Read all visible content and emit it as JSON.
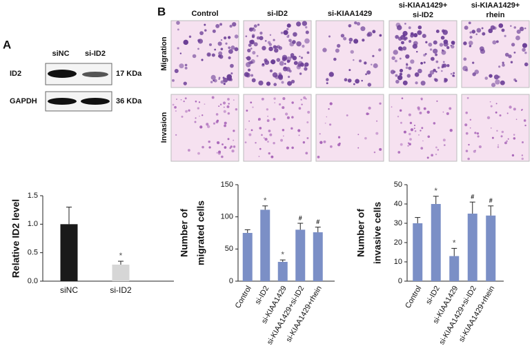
{
  "panel_labels": [
    "A",
    "B"
  ],
  "blot": {
    "lanes": [
      "siNC",
      "si-ID2"
    ],
    "proteins": [
      "ID2",
      "GAPDH"
    ],
    "sizes": [
      "17 KDa",
      "36 KDa"
    ]
  },
  "images": {
    "columns": [
      [
        "Control"
      ],
      [
        "si-ID2"
      ],
      [
        "si-KIAA1429"
      ],
      [
        "si-KIAA1429+",
        "si-ID2"
      ],
      [
        "si-KIAA1429+",
        "rhein"
      ]
    ],
    "rows": [
      "Migration",
      "Invasion"
    ]
  },
  "chart_data": [
    {
      "type": "bar",
      "ylabel": [
        "Relative ID2 level"
      ],
      "categories": [
        "siNC",
        "si-ID2"
      ],
      "values": [
        1.0,
        0.29
      ],
      "errors": [
        0.3,
        0.06
      ],
      "markers": [
        null,
        "*"
      ],
      "colors": [
        "#1a1a1a",
        "#d6d6d6"
      ],
      "ylim": [
        0,
        1.5
      ],
      "yticks": [
        {
          "value": 0,
          "label": "0.0"
        },
        {
          "value": 0.5,
          "label": "0.5"
        },
        {
          "value": 1,
          "label": "1.0"
        },
        {
          "value": 1.5,
          "label": "1.5"
        }
      ]
    },
    {
      "type": "bar",
      "ylabel": [
        "Number of",
        "migrated cells"
      ],
      "categories": [
        "Control",
        "si-ID2",
        "si-KIAA1429",
        "si-KIAA1429+si-ID2",
        "si-KIAA1429+rhein"
      ],
      "values": [
        75,
        111,
        30,
        80,
        76
      ],
      "errors": [
        5,
        6,
        3,
        10,
        8
      ],
      "markers": [
        null,
        "*",
        "*",
        "#",
        "#"
      ],
      "color": "#7b8fc6",
      "ylim": [
        0,
        150
      ],
      "yticks": [
        0,
        50,
        100,
        150
      ]
    },
    {
      "type": "bar",
      "ylabel": [
        "Number of",
        "invasive cells"
      ],
      "categories": [
        "Control",
        "si-ID2",
        "si-KIAA1429",
        "si-KIAA1429+si-ID2",
        "si-KIAA1429+rhein"
      ],
      "values": [
        30,
        40,
        13,
        35,
        34
      ],
      "errors": [
        3,
        4,
        4,
        6,
        5
      ],
      "markers": [
        null,
        "*",
        "*",
        "#",
        "#"
      ],
      "color": "#7b8fc6",
      "ylim": [
        0,
        50
      ],
      "yticks": [
        0,
        10,
        20,
        30,
        40,
        50
      ]
    }
  ]
}
